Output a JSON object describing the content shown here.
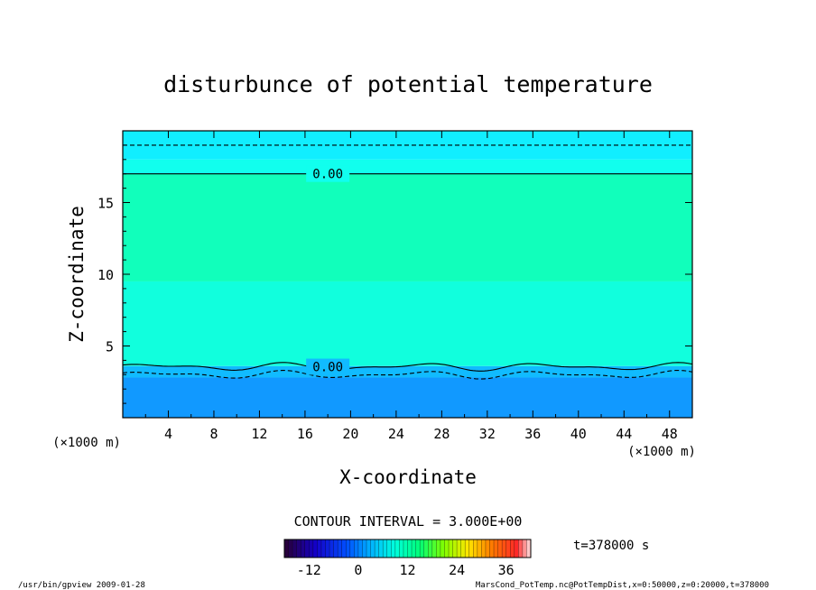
{
  "chart_data": {
    "type": "heatmap",
    "title": "disturbunce of potential temperature",
    "xlabel": "X-coordinate",
    "ylabel": "Z-coordinate",
    "x_units": "(×1000 m)",
    "x_units_right": "(×1000 m)",
    "xlim": [
      0,
      50
    ],
    "ylim": [
      0,
      20
    ],
    "x_ticks": [
      4,
      8,
      12,
      16,
      20,
      24,
      28,
      32,
      36,
      40,
      44,
      48
    ],
    "y_ticks": [
      5,
      10,
      15
    ],
    "bands": [
      {
        "z_from": 0,
        "z_to": 2.8,
        "color": "#1199ff"
      },
      {
        "z_from": 2.8,
        "z_to": 3.6,
        "color": "#11bbff"
      },
      {
        "z_from": 3.6,
        "z_to": 9.5,
        "color": "#11ffdd"
      },
      {
        "z_from": 9.5,
        "z_to": 17,
        "color": "#11ffbb"
      },
      {
        "z_from": 17,
        "z_to": 18,
        "color": "#11ffee"
      },
      {
        "z_from": 18,
        "z_to": 20,
        "color": "#11eeff"
      }
    ],
    "contours": [
      {
        "label": "0.00",
        "z": 17.0,
        "style": "solid"
      },
      {
        "label": "0.00",
        "z": 3.55,
        "style": "solid"
      },
      {
        "label": "",
        "z": 19.0,
        "style": "dashed"
      },
      {
        "label": "",
        "z": 3.0,
        "style": "dashed"
      }
    ],
    "grid": false,
    "contour_interval_text": "CONTOUR INTERVAL = 3.000E+00",
    "time_label": "t=378000 s",
    "colorbar": {
      "ticks": [
        "-12",
        "0",
        "12",
        "24",
        "36"
      ],
      "tick_values": [
        -12,
        0,
        12,
        24,
        36
      ],
      "min": -18,
      "max": 42
    }
  },
  "footer": {
    "left": "/usr/bin/gpview  2009-01-28",
    "right": "MarsCond_PotTemp.nc@PotTempDist,x=0:50000,z=0:20000,t=378000"
  }
}
